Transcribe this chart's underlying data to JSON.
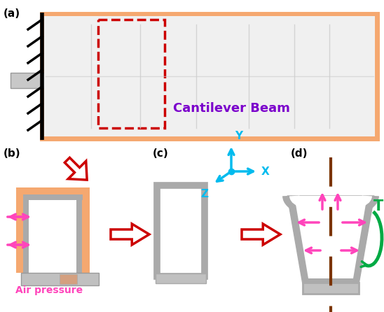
{
  "title_a": "(a)",
  "title_b": "(b)",
  "title_c": "(c)",
  "title_d": "(d)",
  "label_cantilever": "Cantilever Beam",
  "label_air": "Air pressure",
  "label_T": "T",
  "label_X": "X",
  "label_Y": "Y",
  "label_Z": "Z",
  "orange_color": "#F5A870",
  "red_color": "#CC0000",
  "magenta_color": "#FF44BB",
  "purple_color": "#7B00CC",
  "gray_color": "#AAAAAA",
  "light_gray": "#CCCCCC",
  "green_color": "#00AA44",
  "brown_color": "#7B3300",
  "cyan_color": "#00BBEE",
  "bg_color": "#FFFFFF"
}
